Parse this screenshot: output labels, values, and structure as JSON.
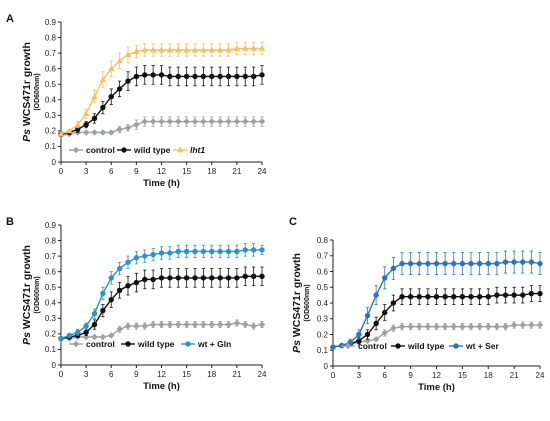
{
  "colors": {
    "control": "#9ea0a3",
    "wild_type": "#111111",
    "lht1": "#f6c15c",
    "gln": "#2b95c8",
    "ser": "#2e73bf"
  },
  "chart_data": [
    {
      "panel": "A",
      "type": "line",
      "xlabel": "Time (h)",
      "ylabel_prefix": "Ps",
      "ylabel_main": "WCS471r growth",
      "ylabel_sub": "(OD600nm)",
      "xlim": [
        0,
        24
      ],
      "ylim": [
        0,
        0.9
      ],
      "xticks": [
        0,
        3,
        6,
        9,
        12,
        15,
        18,
        21,
        24
      ],
      "yticks": [
        0,
        0.1,
        0.2,
        0.3,
        0.4,
        0.5,
        0.6,
        0.7,
        0.8,
        0.9
      ],
      "x": [
        0,
        1,
        2,
        3,
        4,
        5,
        6,
        7,
        8,
        9,
        10,
        11,
        12,
        13,
        14,
        15,
        16,
        17,
        18,
        19,
        20,
        21,
        22,
        23,
        24
      ],
      "legend_position": "bottom-left",
      "series": [
        {
          "name": "control",
          "color_key": "control",
          "marker": "diamond",
          "values": [
            0.17,
            0.18,
            0.19,
            0.19,
            0.19,
            0.19,
            0.19,
            0.21,
            0.22,
            0.24,
            0.26,
            0.26,
            0.26,
            0.26,
            0.26,
            0.26,
            0.26,
            0.26,
            0.26,
            0.26,
            0.26,
            0.26,
            0.26,
            0.26,
            0.26
          ],
          "error": [
            0.01,
            0.01,
            0.01,
            0.01,
            0.01,
            0.01,
            0.01,
            0.02,
            0.02,
            0.03,
            0.03,
            0.03,
            0.03,
            0.03,
            0.03,
            0.03,
            0.03,
            0.03,
            0.03,
            0.03,
            0.03,
            0.03,
            0.03,
            0.03,
            0.03
          ]
        },
        {
          "name": "wild type",
          "color_key": "wild_type",
          "marker": "circle",
          "values": [
            0.18,
            0.19,
            0.21,
            0.24,
            0.28,
            0.35,
            0.42,
            0.47,
            0.52,
            0.55,
            0.56,
            0.56,
            0.56,
            0.55,
            0.55,
            0.55,
            0.55,
            0.55,
            0.55,
            0.55,
            0.55,
            0.55,
            0.55,
            0.55,
            0.56
          ],
          "error": [
            0.01,
            0.01,
            0.02,
            0.02,
            0.03,
            0.04,
            0.05,
            0.05,
            0.06,
            0.06,
            0.06,
            0.06,
            0.06,
            0.06,
            0.06,
            0.06,
            0.06,
            0.06,
            0.06,
            0.06,
            0.06,
            0.06,
            0.06,
            0.06,
            0.06
          ]
        },
        {
          "name": "lht1",
          "italic": true,
          "color_key": "lht1",
          "marker": "triangle",
          "values": [
            0.18,
            0.2,
            0.24,
            0.31,
            0.42,
            0.53,
            0.6,
            0.65,
            0.69,
            0.71,
            0.72,
            0.72,
            0.72,
            0.72,
            0.72,
            0.72,
            0.72,
            0.72,
            0.72,
            0.72,
            0.72,
            0.73,
            0.73,
            0.73,
            0.73
          ],
          "error": [
            0.01,
            0.01,
            0.02,
            0.03,
            0.04,
            0.05,
            0.05,
            0.05,
            0.05,
            0.04,
            0.04,
            0.04,
            0.04,
            0.04,
            0.04,
            0.04,
            0.04,
            0.04,
            0.04,
            0.04,
            0.04,
            0.04,
            0.04,
            0.04,
            0.04
          ]
        }
      ]
    },
    {
      "panel": "B",
      "type": "line",
      "xlabel": "Time (h)",
      "ylabel_prefix": "Ps",
      "ylabel_main": "WCS471r growth",
      "ylabel_sub": "(OD600nm)",
      "xlim": [
        0,
        24
      ],
      "ylim": [
        0,
        0.9
      ],
      "xticks": [
        0,
        3,
        6,
        9,
        12,
        15,
        18,
        21,
        24
      ],
      "yticks": [
        0,
        0.1,
        0.2,
        0.3,
        0.4,
        0.5,
        0.6,
        0.7,
        0.8,
        0.9
      ],
      "x": [
        0,
        1,
        2,
        3,
        4,
        5,
        6,
        7,
        8,
        9,
        10,
        11,
        12,
        13,
        14,
        15,
        16,
        17,
        18,
        19,
        20,
        21,
        22,
        23,
        24
      ],
      "legend_position": "bottom",
      "series": [
        {
          "name": "control",
          "color_key": "control",
          "marker": "diamond",
          "values": [
            0.17,
            0.17,
            0.18,
            0.18,
            0.18,
            0.18,
            0.19,
            0.23,
            0.25,
            0.25,
            0.25,
            0.26,
            0.26,
            0.26,
            0.26,
            0.26,
            0.26,
            0.26,
            0.26,
            0.26,
            0.26,
            0.27,
            0.26,
            0.25,
            0.26
          ],
          "error": [
            0.01,
            0.01,
            0.01,
            0.01,
            0.01,
            0.01,
            0.01,
            0.02,
            0.02,
            0.02,
            0.02,
            0.02,
            0.02,
            0.02,
            0.02,
            0.02,
            0.02,
            0.02,
            0.02,
            0.02,
            0.02,
            0.02,
            0.02,
            0.02,
            0.02
          ]
        },
        {
          "name": "wild type",
          "color_key": "wild_type",
          "marker": "circle",
          "values": [
            0.17,
            0.18,
            0.19,
            0.21,
            0.26,
            0.35,
            0.42,
            0.48,
            0.51,
            0.53,
            0.55,
            0.55,
            0.56,
            0.56,
            0.56,
            0.56,
            0.56,
            0.56,
            0.56,
            0.56,
            0.56,
            0.56,
            0.57,
            0.57,
            0.57
          ],
          "error": [
            0.01,
            0.01,
            0.01,
            0.02,
            0.03,
            0.04,
            0.05,
            0.05,
            0.06,
            0.06,
            0.06,
            0.06,
            0.06,
            0.06,
            0.06,
            0.06,
            0.06,
            0.06,
            0.06,
            0.06,
            0.06,
            0.06,
            0.06,
            0.06,
            0.06
          ]
        },
        {
          "name": "wt + Gln",
          "color_key": "gln",
          "marker": "circle",
          "values": [
            0.17,
            0.19,
            0.21,
            0.25,
            0.33,
            0.46,
            0.56,
            0.62,
            0.66,
            0.69,
            0.7,
            0.71,
            0.72,
            0.72,
            0.73,
            0.73,
            0.73,
            0.73,
            0.73,
            0.73,
            0.73,
            0.73,
            0.74,
            0.74,
            0.74
          ],
          "error": [
            0.01,
            0.01,
            0.02,
            0.02,
            0.03,
            0.04,
            0.04,
            0.04,
            0.04,
            0.04,
            0.04,
            0.04,
            0.04,
            0.04,
            0.04,
            0.04,
            0.04,
            0.04,
            0.04,
            0.04,
            0.04,
            0.04,
            0.04,
            0.04,
            0.03
          ]
        }
      ]
    },
    {
      "panel": "C",
      "type": "line",
      "xlabel": "Time (h)",
      "ylabel_prefix": "Ps",
      "ylabel_main": "WCS471r growth",
      "ylabel_sub": "(OD600nm)",
      "xlim": [
        0,
        24
      ],
      "ylim": [
        0,
        0.8
      ],
      "xticks": [
        0,
        3,
        6,
        9,
        12,
        15,
        18,
        21,
        24
      ],
      "yticks": [
        0,
        0.1,
        0.2,
        0.3,
        0.4,
        0.5,
        0.6,
        0.7,
        0.8
      ],
      "x": [
        0,
        1,
        2,
        3,
        4,
        5,
        6,
        7,
        8,
        9,
        10,
        11,
        12,
        13,
        14,
        15,
        16,
        17,
        18,
        19,
        20,
        21,
        22,
        23,
        24
      ],
      "legend_position": "bottom",
      "series": [
        {
          "name": "control",
          "color_key": "control",
          "marker": "diamond",
          "values": [
            0.12,
            0.13,
            0.14,
            0.15,
            0.16,
            0.17,
            0.21,
            0.24,
            0.25,
            0.25,
            0.25,
            0.25,
            0.25,
            0.25,
            0.25,
            0.25,
            0.25,
            0.25,
            0.25,
            0.25,
            0.25,
            0.26,
            0.26,
            0.26,
            0.26
          ],
          "error": [
            0.01,
            0.01,
            0.01,
            0.01,
            0.01,
            0.01,
            0.02,
            0.02,
            0.02,
            0.02,
            0.02,
            0.02,
            0.02,
            0.02,
            0.02,
            0.02,
            0.02,
            0.02,
            0.02,
            0.02,
            0.02,
            0.02,
            0.02,
            0.02,
            0.02
          ]
        },
        {
          "name": "wild type",
          "color_key": "wild_type",
          "marker": "circle",
          "values": [
            0.12,
            0.13,
            0.14,
            0.16,
            0.2,
            0.27,
            0.34,
            0.4,
            0.44,
            0.44,
            0.44,
            0.44,
            0.44,
            0.44,
            0.44,
            0.44,
            0.44,
            0.44,
            0.44,
            0.45,
            0.45,
            0.45,
            0.45,
            0.46,
            0.46
          ],
          "error": [
            0.01,
            0.01,
            0.01,
            0.02,
            0.03,
            0.04,
            0.05,
            0.05,
            0.05,
            0.05,
            0.05,
            0.05,
            0.05,
            0.05,
            0.05,
            0.05,
            0.05,
            0.05,
            0.05,
            0.05,
            0.05,
            0.05,
            0.05,
            0.05,
            0.05
          ]
        },
        {
          "name": "wt + Ser",
          "color_key": "ser",
          "marker": "circle",
          "values": [
            0.12,
            0.13,
            0.15,
            0.2,
            0.32,
            0.45,
            0.56,
            0.62,
            0.65,
            0.65,
            0.65,
            0.65,
            0.65,
            0.65,
            0.65,
            0.65,
            0.65,
            0.65,
            0.65,
            0.65,
            0.66,
            0.66,
            0.66,
            0.66,
            0.65
          ],
          "error": [
            0.01,
            0.01,
            0.02,
            0.03,
            0.05,
            0.06,
            0.07,
            0.07,
            0.07,
            0.07,
            0.07,
            0.07,
            0.07,
            0.07,
            0.07,
            0.07,
            0.07,
            0.07,
            0.07,
            0.07,
            0.07,
            0.07,
            0.07,
            0.07,
            0.07
          ]
        }
      ]
    }
  ]
}
